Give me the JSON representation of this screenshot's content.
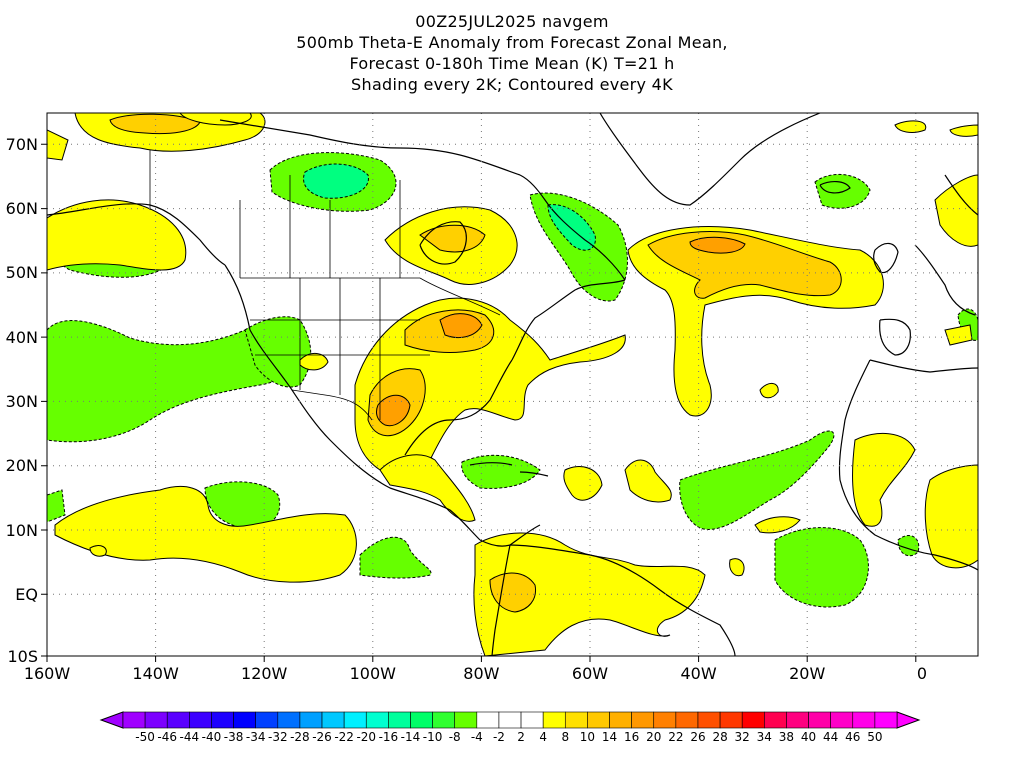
{
  "title": {
    "line1": "00Z25JUL2025 navgem",
    "line2": "500mb Theta-E Anomaly from Forecast Zonal Mean,",
    "line3": "Forecast 0-180h Time Mean (K) T=21 h",
    "line4": "Shading every 2K; Contoured every 4K"
  },
  "axes": {
    "x_ticks": [
      "160W",
      "140W",
      "120W",
      "100W",
      "80W",
      "60W",
      "40W",
      "20W",
      "0"
    ],
    "y_ticks": [
      "70N",
      "60N",
      "50N",
      "40N",
      "30N",
      "20N",
      "10N",
      "EQ",
      "10S"
    ]
  },
  "colorbar": {
    "labels": [
      "-50",
      "-46",
      "-44",
      "-40",
      "-38",
      "-34",
      "-32",
      "-28",
      "-26",
      "-22",
      "-20",
      "-16",
      "-14",
      "-10",
      "-8",
      "-4",
      "-2",
      "2",
      "4",
      "8",
      "10",
      "14",
      "16",
      "20",
      "22",
      "26",
      "28",
      "32",
      "34",
      "38",
      "40",
      "44",
      "46",
      "50"
    ],
    "colors": [
      "#a000ff",
      "#7c00ff",
      "#5a00ff",
      "#3c00ff",
      "#1e00ff",
      "#0000ff",
      "#0040ff",
      "#0070ff",
      "#00a0ff",
      "#00c8ff",
      "#00f0ff",
      "#00ffd0",
      "#00ff9c",
      "#00ff68",
      "#30ff30",
      "#66ff00",
      "#ffffff",
      "#ffffff",
      "#ffffff",
      "#ffff00",
      "#ffe000",
      "#ffc800",
      "#ffb000",
      "#ff9800",
      "#ff8000",
      "#ff6800",
      "#ff5000",
      "#ff3800",
      "#ff0000",
      "#ff0050",
      "#ff0080",
      "#ff00a8",
      "#ff00c8",
      "#ff00e8",
      "#ff00ff"
    ],
    "low_arrow_color": "#a000ff",
    "high_arrow_color": "#ff00ff"
  },
  "palette": {
    "positive_low": "#ffff00",
    "positive_mid": "#ffd000",
    "positive_high": "#ffa000",
    "negative_low": "#66ff00",
    "negative_mid": "#00ff80"
  }
}
